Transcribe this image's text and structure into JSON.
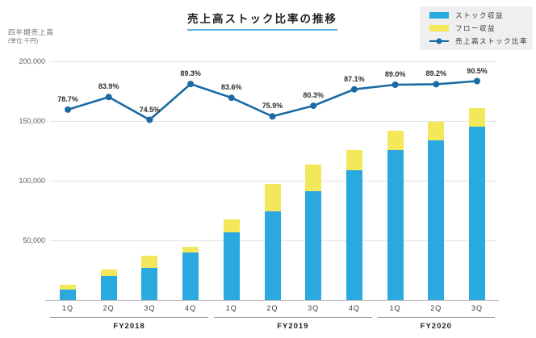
{
  "title": "売上高ストック比率の推移",
  "y_axis_title_line1": "四半期売上高",
  "y_axis_title_line2": "(単位:千円)",
  "legend": {
    "items": [
      {
        "name": "stock-revenue",
        "label": "ストック収益",
        "color": "#29a9e0",
        "type": "bar"
      },
      {
        "name": "flow-revenue",
        "label": "フロー収益",
        "color": "#f3e85a",
        "type": "bar"
      },
      {
        "name": "stock-ratio",
        "label": "売上高ストック比率",
        "color": "#1a6ba3",
        "type": "line"
      }
    ]
  },
  "chart_data": {
    "type": "combo: stacked bar + line",
    "title": "売上高ストック比率の推移",
    "categories": [
      "1Q",
      "2Q",
      "3Q",
      "4Q",
      "1Q",
      "2Q",
      "3Q",
      "4Q",
      "1Q",
      "2Q",
      "3Q"
    ],
    "groups": [
      {
        "label": "FY2018",
        "span": 4
      },
      {
        "label": "FY2019",
        "span": 4
      },
      {
        "label": "FY2020",
        "span": 3
      }
    ],
    "series": [
      {
        "name": "ストック収益",
        "type": "bar",
        "stack": true,
        "color": "#29a9e0",
        "values": [
          8500,
          20500,
          27000,
          40000,
          56500,
          74500,
          91000,
          109000,
          125500,
          134000,
          145500
        ]
      },
      {
        "name": "フロー収益",
        "type": "bar",
        "stack": true,
        "color": "#f3e85a",
        "values": [
          4500,
          5000,
          10500,
          4500,
          11000,
          23000,
          22500,
          17000,
          16500,
          15500,
          15000
        ]
      },
      {
        "name": "売上高ストック比率",
        "type": "line",
        "color": "#1a6ba3",
        "unit": "%",
        "values": [
          78.7,
          83.9,
          74.5,
          89.3,
          83.6,
          75.9,
          80.3,
          87.1,
          89.0,
          89.2,
          90.5
        ],
        "labels": [
          "78.7%",
          "83.9%",
          "74.5%",
          "89.3%",
          "83.6%",
          "75.9%",
          "80.3%",
          "87.1%",
          "89.0%",
          "89.2%",
          "90.5%"
        ]
      }
    ],
    "y_axis": {
      "title": "四半期売上高(単位:千円)",
      "tick_values": [
        50000,
        100000,
        150000,
        200000
      ],
      "tick_labels": [
        "50,000",
        "100,000",
        "150,000",
        "200,000"
      ],
      "min": 0,
      "max": 200000,
      "grid": true
    },
    "secondary_axis": {
      "visible": false,
      "unit": "%",
      "range": [
        0,
        100
      ]
    },
    "legend_position": "top-right"
  }
}
